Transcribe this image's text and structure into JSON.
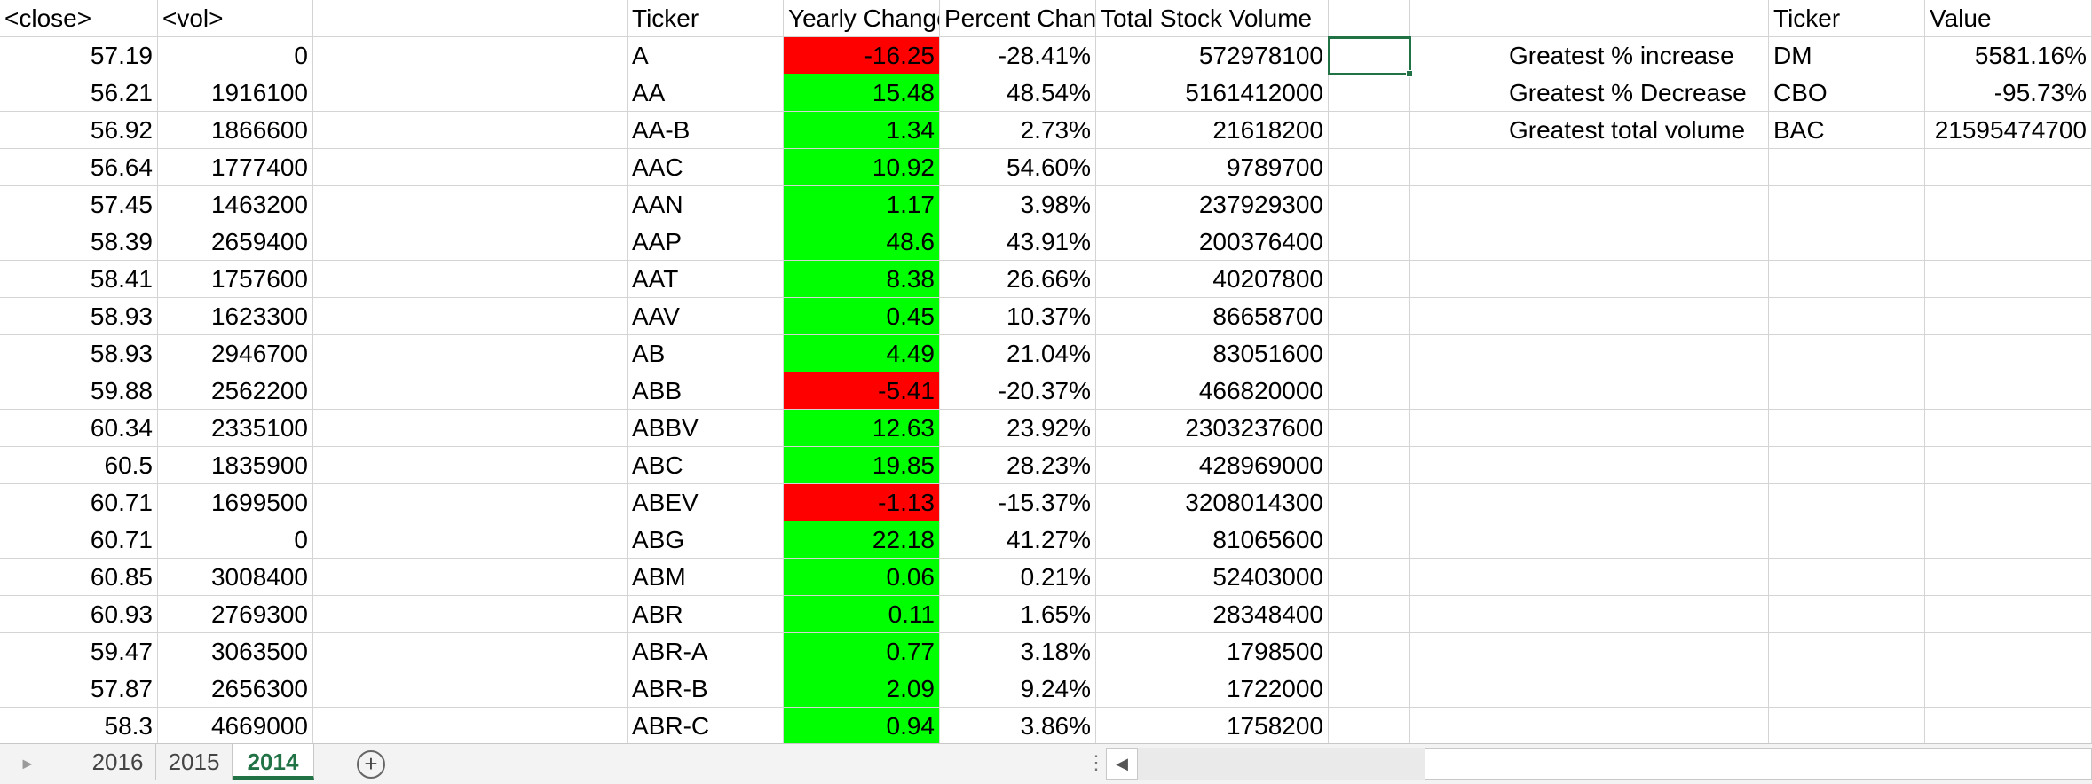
{
  "sheet_tabs": [
    "2016",
    "2015",
    "2014"
  ],
  "active_tab": "2014",
  "add_sheet_label": "+",
  "header": {
    "close": "<close>",
    "vol": "<vol>",
    "ticker": "Ticker",
    "yearly_change": "Yearly Change",
    "percent_change": "Percent Change",
    "total_volume": "Total Stock Volume",
    "summary_ticker": "Ticker",
    "summary_value": "Value"
  },
  "rows": [
    {
      "close": "57.19",
      "vol": "0",
      "ticker": "A",
      "change": "-16.25",
      "pct": "-28.41%",
      "total": "572978100",
      "color": "red"
    },
    {
      "close": "56.21",
      "vol": "1916100",
      "ticker": "AA",
      "change": "15.48",
      "pct": "48.54%",
      "total": "5161412000",
      "color": "green"
    },
    {
      "close": "56.92",
      "vol": "1866600",
      "ticker": "AA-B",
      "change": "1.34",
      "pct": "2.73%",
      "total": "21618200",
      "color": "green"
    },
    {
      "close": "56.64",
      "vol": "1777400",
      "ticker": "AAC",
      "change": "10.92",
      "pct": "54.60%",
      "total": "9789700",
      "color": "green"
    },
    {
      "close": "57.45",
      "vol": "1463200",
      "ticker": "AAN",
      "change": "1.17",
      "pct": "3.98%",
      "total": "237929300",
      "color": "green"
    },
    {
      "close": "58.39",
      "vol": "2659400",
      "ticker": "AAP",
      "change": "48.6",
      "pct": "43.91%",
      "total": "200376400",
      "color": "green"
    },
    {
      "close": "58.41",
      "vol": "1757600",
      "ticker": "AAT",
      "change": "8.38",
      "pct": "26.66%",
      "total": "40207800",
      "color": "green"
    },
    {
      "close": "58.93",
      "vol": "1623300",
      "ticker": "AAV",
      "change": "0.45",
      "pct": "10.37%",
      "total": "86658700",
      "color": "green"
    },
    {
      "close": "58.93",
      "vol": "2946700",
      "ticker": "AB",
      "change": "4.49",
      "pct": "21.04%",
      "total": "83051600",
      "color": "green"
    },
    {
      "close": "59.88",
      "vol": "2562200",
      "ticker": "ABB",
      "change": "-5.41",
      "pct": "-20.37%",
      "total": "466820000",
      "color": "red"
    },
    {
      "close": "60.34",
      "vol": "2335100",
      "ticker": "ABBV",
      "change": "12.63",
      "pct": "23.92%",
      "total": "2303237600",
      "color": "green"
    },
    {
      "close": "60.5",
      "vol": "1835900",
      "ticker": "ABC",
      "change": "19.85",
      "pct": "28.23%",
      "total": "428969000",
      "color": "green"
    },
    {
      "close": "60.71",
      "vol": "1699500",
      "ticker": "ABEV",
      "change": "-1.13",
      "pct": "-15.37%",
      "total": "3208014300",
      "color": "red"
    },
    {
      "close": "60.71",
      "vol": "0",
      "ticker": "ABG",
      "change": "22.18",
      "pct": "41.27%",
      "total": "81065600",
      "color": "green"
    },
    {
      "close": "60.85",
      "vol": "3008400",
      "ticker": "ABM",
      "change": "0.06",
      "pct": "0.21%",
      "total": "52403000",
      "color": "green"
    },
    {
      "close": "60.93",
      "vol": "2769300",
      "ticker": "ABR",
      "change": "0.11",
      "pct": "1.65%",
      "total": "28348400",
      "color": "green"
    },
    {
      "close": "59.47",
      "vol": "3063500",
      "ticker": "ABR-A",
      "change": "0.77",
      "pct": "3.18%",
      "total": "1798500",
      "color": "green"
    },
    {
      "close": "57.87",
      "vol": "2656300",
      "ticker": "ABR-B",
      "change": "2.09",
      "pct": "9.24%",
      "total": "1722000",
      "color": "green"
    },
    {
      "close": "58.3",
      "vol": "4669000",
      "ticker": "ABR-C",
      "change": "0.94",
      "pct": "3.86%",
      "total": "1758200",
      "color": "green"
    }
  ],
  "summary": [
    {
      "label": "Greatest % increase",
      "ticker": "DM",
      "value": "5581.16%"
    },
    {
      "label": "Greatest % Decrease",
      "ticker": "CBO",
      "value": "-95.73%"
    },
    {
      "label": "Greatest total volume",
      "ticker": "BAC",
      "value": "21595474700"
    }
  ],
  "colors": {
    "positive": "#00ff00",
    "negative": "#ff0000",
    "accent": "#217346"
  }
}
